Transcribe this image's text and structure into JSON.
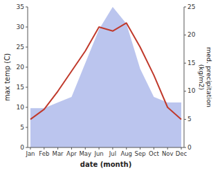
{
  "chart_data": {
    "type": "line",
    "categories": [
      "Jan",
      "Feb",
      "Mar",
      "Apr",
      "May",
      "Jun",
      "Jul",
      "Aug",
      "Sep",
      "Oct",
      "Nov",
      "Dec"
    ],
    "xlabel": "date (month)",
    "ylabel": "max temp (C)",
    "y2label": "med. precipitation\n(kg/m2)",
    "ylim": [
      0,
      35
    ],
    "yticks": [
      0,
      5,
      10,
      15,
      20,
      25,
      30,
      35
    ],
    "y2lim": [
      0,
      25
    ],
    "y2ticks": [
      0,
      5,
      10,
      15,
      20,
      25
    ],
    "grid": false,
    "series": [
      {
        "type": "area",
        "axis": "y2",
        "color": "#bbc5ee",
        "values": [
          7,
          7,
          8,
          9,
          15,
          21,
          25,
          22,
          14,
          9,
          8,
          8
        ]
      },
      {
        "type": "line",
        "color": "#c0392b",
        "values": [
          7,
          9.5,
          14,
          19,
          24,
          30,
          29,
          31,
          25,
          18,
          10,
          7
        ]
      }
    ]
  }
}
